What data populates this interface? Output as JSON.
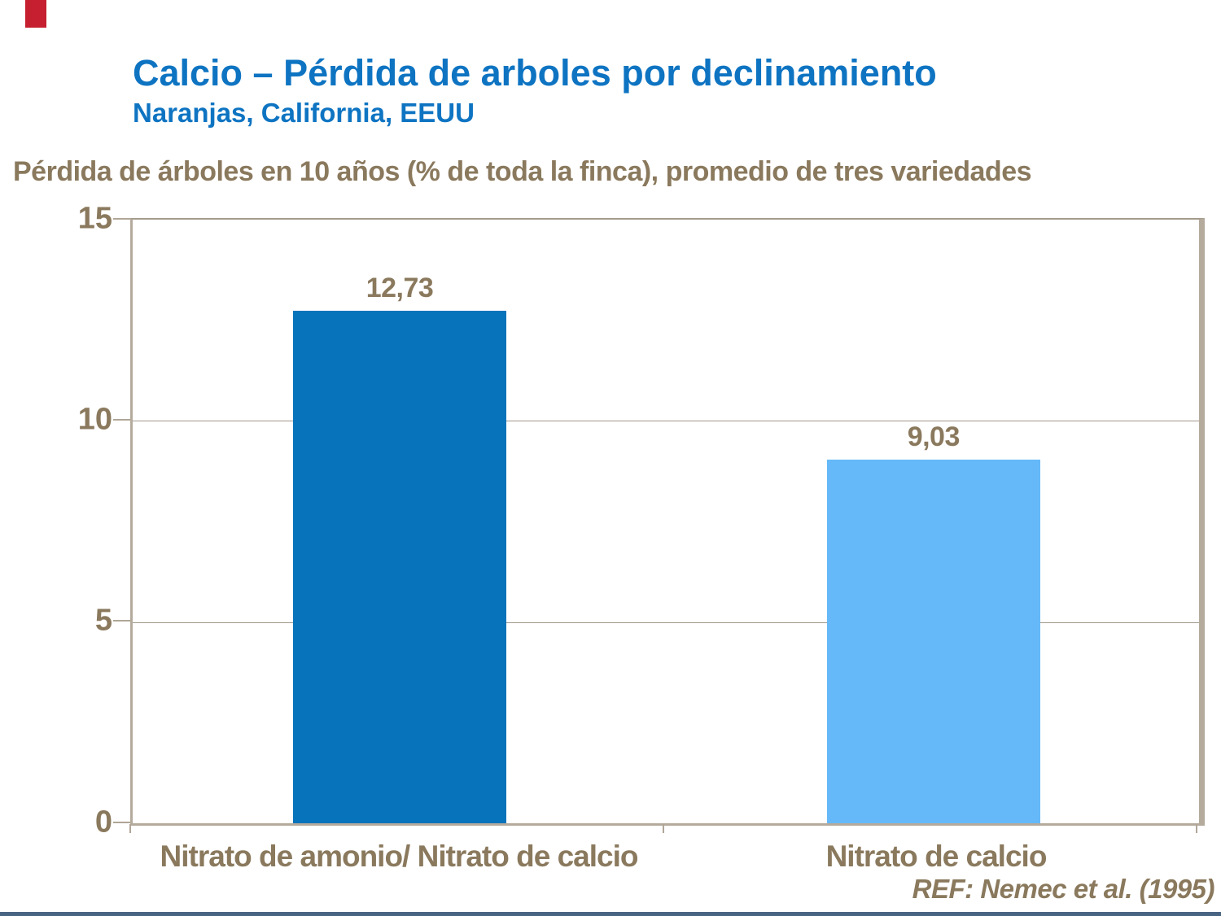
{
  "slide": {
    "title": "Calcio – Pérdida de arboles por declinamiento",
    "subtitle": "Naranjas, California, EEUU",
    "footer_ref": "REF: Nemec et al. (1995)"
  },
  "chart_data": {
    "type": "bar",
    "title": "Pérdida de árboles en 10 años (% de toda la finca), promedio de tres variedades",
    "categories": [
      "Nitrato de amonio/ Nitrato de calcio",
      "Nitrato de calcio"
    ],
    "values": [
      12.73,
      9.03
    ],
    "value_labels": [
      "12,73",
      "9,03"
    ],
    "bar_colors": [
      "#0773bb",
      "#65b9f8"
    ],
    "xlabel": "",
    "ylabel": "Pérdida de árboles en 10 años (% de toda la finca), promedio de tres variedades",
    "ylim": [
      0,
      15
    ],
    "yticks": [
      0,
      5,
      10,
      15
    ],
    "ytick_labels_top_to_bottom": [
      "15",
      "10",
      "5",
      "0"
    ],
    "grid": true,
    "legend": "none"
  },
  "colors": {
    "title_blue": "#0e74c2",
    "text_brown": "#8a795d",
    "frame_tan": "#b5ab9d",
    "gridline_tan": "#a1968a",
    "bar_dark_blue": "#0773bb",
    "bar_light_blue": "#65b9f8",
    "brand_red": "#c51f30",
    "footer_bar_blue": "#4a6583"
  }
}
